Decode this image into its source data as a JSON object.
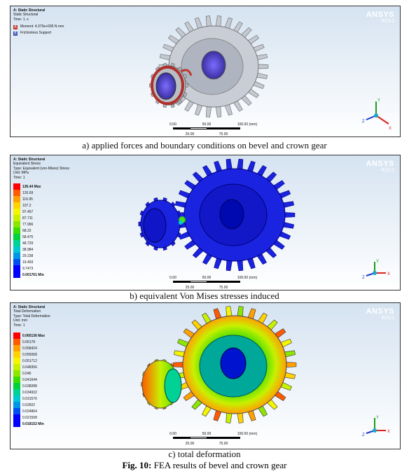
{
  "panel_a": {
    "info": [
      "A: Static Structural",
      "Static Structural",
      "Time: 1. s"
    ],
    "bcs": [
      {
        "tag": "A",
        "label": "Moment: 4.370e+005 N·mm",
        "color": "#c0392b"
      },
      {
        "tag": "B",
        "label": "Frictionless Support",
        "color": "#3b4fb0"
      }
    ],
    "logo": "ANSYS",
    "version": "R15.0",
    "scale_top": [
      "0.00",
      "50.00",
      "100.00 (mm)"
    ],
    "scale_bottom": [
      "25.00",
      "75.00"
    ],
    "caption": "a) applied forces and boundary conditions on bevel and crown gear"
  },
  "panel_b": {
    "info": [
      "A: Static Structural",
      "Equivalent Stress",
      "Type: Equivalent (von-Mises) Stress",
      "Unit: MPa",
      "Time: 1"
    ],
    "logo": "ANSYS",
    "version": "R15.0",
    "legend": [
      "136.44 Max",
      "126.69",
      "116.95",
      "107.2",
      "97.457",
      "87.711",
      "77.966",
      "68.22",
      "58.475",
      "48.729",
      "38.984",
      "29.238",
      "19.493",
      "9.7473",
      "0.001761 Min"
    ],
    "scale_top": [
      "0.00",
      "50.00",
      "100.00 (mm)"
    ],
    "scale_bottom": [
      "25.00",
      "75.00"
    ],
    "caption": "b) equivalent Von Mises stresses induced"
  },
  "panel_c": {
    "info": [
      "A: Static Structural",
      "Total Deformation",
      "Type: Total Deformation",
      "Unit: mm",
      "Time: 1"
    ],
    "logo": "ANSYS",
    "version": "R15.0",
    "legend": [
      "0.065136 Max",
      "0.06178",
      "0.058424",
      "0.055068",
      "0.051712",
      "0.048356",
      "0.045",
      "0.041644",
      "0.038288",
      "0.034932",
      "0.031576",
      "0.02822",
      "0.024864",
      "0.021508",
      "0.018152 Min"
    ],
    "scale_top": [
      "0.00",
      "50.00",
      "100.00 (mm)"
    ],
    "scale_bottom": [
      "25.00",
      "75.00"
    ],
    "caption": "c) total deformation"
  },
  "legend_colors": [
    "#ff0000",
    "#ff5a00",
    "#ffa000",
    "#ffd200",
    "#f5f500",
    "#c8f000",
    "#8ce600",
    "#3cdc00",
    "#00d23c",
    "#00d296",
    "#00c8d2",
    "#0096e6",
    "#0050f0",
    "#0000ff"
  ],
  "figure": {
    "label": "Fig. 10:",
    "title": "FEA results of bevel and crown gear"
  }
}
